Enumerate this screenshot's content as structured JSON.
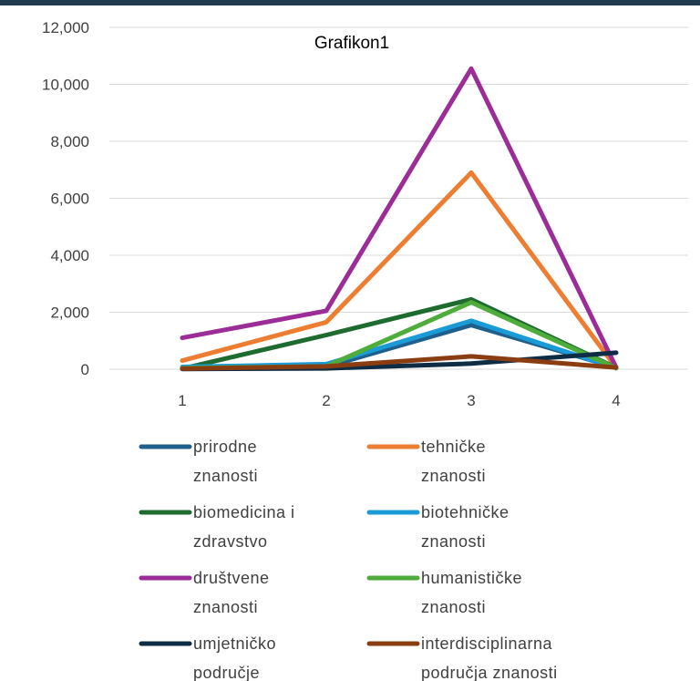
{
  "chart_data": {
    "type": "line",
    "title": "Grafikon1",
    "x": [
      1,
      2,
      3,
      4
    ],
    "x_tick_labels": [
      "1",
      "2",
      "3",
      "4"
    ],
    "ylim": [
      0,
      12000
    ],
    "y_ticks": [
      0,
      2000,
      4000,
      6000,
      8000,
      10000,
      12000
    ],
    "y_tick_labels": [
      "0",
      "2,000",
      "4,000",
      "6,000",
      "8,000",
      "10,000",
      "12,000"
    ],
    "grid": true,
    "legend_position": "bottom",
    "series": [
      {
        "name": "prirodne znanosti",
        "name_lines": [
          "prirodne",
          "znanosti"
        ],
        "color": "#1f5f8b",
        "values": [
          30,
          90,
          1550,
          60
        ]
      },
      {
        "name": "tehničke znanosti",
        "name_lines": [
          "tehničke",
          "znanosti"
        ],
        "color": "#ed7d31",
        "values": [
          300,
          1650,
          6900,
          50
        ]
      },
      {
        "name": "biomedicina i zdravstvo",
        "name_lines": [
          "biomedicina i",
          "zdravstvo"
        ],
        "color": "#1e6b30",
        "values": [
          20,
          1200,
          2450,
          50
        ]
      },
      {
        "name": "biotehničke znanosti",
        "name_lines": [
          "biotehničke",
          "znanosti"
        ],
        "color": "#1a9bd7",
        "values": [
          80,
          180,
          1700,
          40
        ]
      },
      {
        "name": "društvene znanosti",
        "name_lines": [
          "društvene",
          "znanosti"
        ],
        "color": "#9b2c98",
        "values": [
          1100,
          2050,
          10550,
          60
        ]
      },
      {
        "name": "humanističke znanosti",
        "name_lines": [
          "humanističke",
          "znanosti"
        ],
        "color": "#4eac3a",
        "values": [
          40,
          100,
          2350,
          40
        ]
      },
      {
        "name": "umjetničko područje",
        "name_lines": [
          "umjetničko",
          "područje"
        ],
        "color": "#0e2d45",
        "values": [
          10,
          30,
          200,
          580
        ]
      },
      {
        "name": "interdisciplinarna područja znanosti",
        "name_lines": [
          "interdisciplinarna",
          "područja znanosti"
        ],
        "color": "#8b3d12",
        "values": [
          20,
          100,
          450,
          60
        ]
      }
    ]
  }
}
